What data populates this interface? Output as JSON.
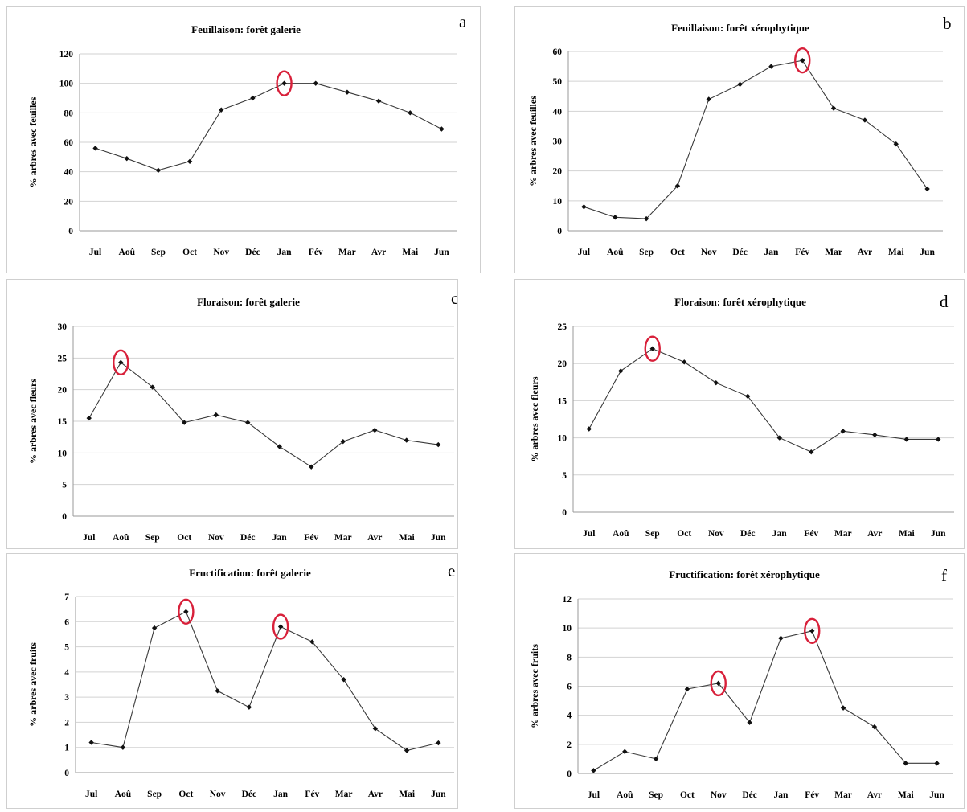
{
  "chart_data": [
    {
      "id": "a",
      "letter": "a",
      "type": "line",
      "title": "Feuillaison: forêt galerie",
      "ylabel": "% arbres avec feuilles",
      "categories": [
        "Jul",
        "Aoû",
        "Sep",
        "Oct",
        "Nov",
        "Déc",
        "Jan",
        "Fév",
        "Mar",
        "Avr",
        "Mai",
        "Jun"
      ],
      "values": [
        56,
        49,
        41,
        47,
        82,
        90,
        100,
        100,
        94,
        88,
        80,
        69
      ],
      "ylim": [
        0,
        120
      ],
      "yticks": [
        0,
        20,
        40,
        60,
        80,
        100,
        120
      ],
      "grid": true,
      "highlighted": [
        "Jan"
      ]
    },
    {
      "id": "b",
      "letter": "b",
      "type": "line",
      "title": "Feuillaison: forêt xérophytique",
      "ylabel": "% arbres avec feuilles",
      "categories": [
        "Jul",
        "Aoû",
        "Sep",
        "Oct",
        "Nov",
        "Déc",
        "Jan",
        "Fév",
        "Mar",
        "Avr",
        "Mai",
        "Jun"
      ],
      "values": [
        8,
        4.5,
        4,
        15,
        44,
        49,
        55,
        57,
        41,
        37,
        29,
        14
      ],
      "ylim": [
        0,
        60
      ],
      "yticks": [
        0,
        10,
        20,
        30,
        40,
        50,
        60
      ],
      "grid": true,
      "highlighted": [
        "Fév"
      ]
    },
    {
      "id": "c",
      "letter": "c",
      "type": "line",
      "title": "Floraison: forêt galerie",
      "ylabel": "% arbres avec fleurs",
      "categories": [
        "Jul",
        "Aoû",
        "Sep",
        "Oct",
        "Nov",
        "Déc",
        "Jan",
        "Fév",
        "Mar",
        "Avr",
        "Mai",
        "Jun"
      ],
      "values": [
        15.5,
        24.3,
        20.4,
        14.8,
        16,
        14.8,
        11,
        7.8,
        11.8,
        13.6,
        12,
        11.3
      ],
      "ylim": [
        0,
        30
      ],
      "yticks": [
        0,
        5,
        10,
        15,
        20,
        25,
        30
      ],
      "grid": true,
      "highlighted": [
        "Aoû"
      ]
    },
    {
      "id": "d",
      "letter": "d",
      "type": "line",
      "title": "Floraison: forêt xérophytique",
      "ylabel": "% arbres avec fleurs",
      "categories": [
        "Jul",
        "Aoû",
        "Sep",
        "Oct",
        "Nov",
        "Déc",
        "Jan",
        "Fév",
        "Mar",
        "Avr",
        "Mai",
        "Jun"
      ],
      "values": [
        11.2,
        19,
        22,
        20.2,
        17.4,
        15.6,
        10,
        8.1,
        10.9,
        10.4,
        9.8,
        9.8
      ],
      "ylim": [
        0,
        25
      ],
      "yticks": [
        0,
        5,
        10,
        15,
        20,
        25
      ],
      "grid": true,
      "highlighted": [
        "Sep"
      ]
    },
    {
      "id": "e",
      "letter": "e",
      "type": "line",
      "title": "Fructification: forêt galerie",
      "ylabel": "% arbres avec fruits",
      "categories": [
        "Jul",
        "Aoû",
        "Sep",
        "Oct",
        "Nov",
        "Déc",
        "Jan",
        "Fév",
        "Mar",
        "Avr",
        "Mai",
        "Jun"
      ],
      "values": [
        1.2,
        1.0,
        5.75,
        6.4,
        3.25,
        2.6,
        5.8,
        5.2,
        3.7,
        1.75,
        0.88,
        1.18
      ],
      "ylim": [
        0,
        7
      ],
      "yticks": [
        0,
        1,
        2,
        3,
        4,
        5,
        6,
        7
      ],
      "grid": true,
      "highlighted": [
        "Oct",
        "Jan"
      ]
    },
    {
      "id": "f",
      "letter": "f",
      "type": "line",
      "title": "Fructification: forêt xérophytique",
      "ylabel": "% arbres avec fruits",
      "categories": [
        "Jul",
        "Aoû",
        "Sep",
        "Oct",
        "Nov",
        "Déc",
        "Jan",
        "Fév",
        "Mar",
        "Avr",
        "Mai",
        "Jun"
      ],
      "values": [
        0.2,
        1.5,
        1.0,
        5.8,
        6.2,
        3.5,
        9.3,
        9.8,
        4.5,
        3.2,
        0.7,
        0.7
      ],
      "ylim": [
        0,
        12
      ],
      "yticks": [
        0,
        2,
        4,
        6,
        8,
        10,
        12
      ],
      "grid": true,
      "highlighted": [
        "Nov",
        "Fév"
      ]
    }
  ]
}
